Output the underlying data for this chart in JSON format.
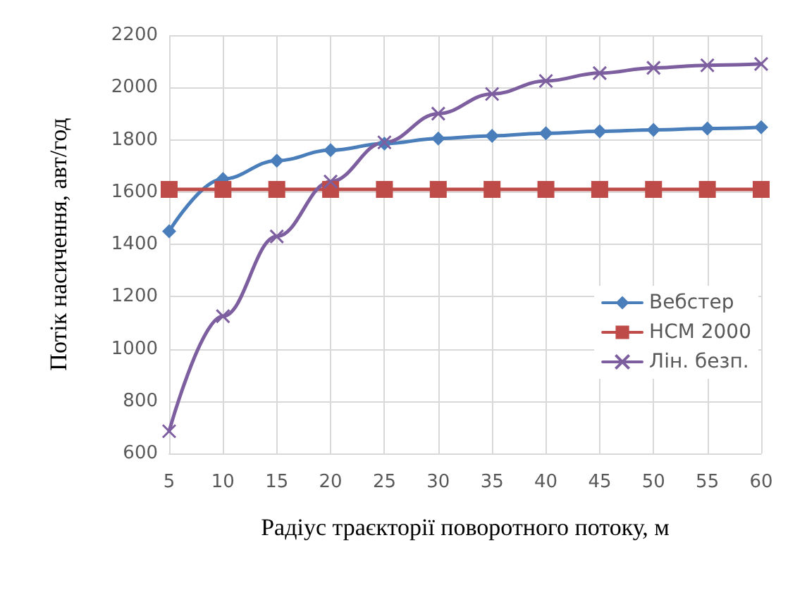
{
  "chart_data": {
    "type": "line",
    "xlabel": "Радіус траєкторії поворотного потоку, м",
    "ylabel": "Потік насичення, авт/год",
    "categories": [
      "5",
      "10",
      "15",
      "20",
      "25",
      "30",
      "35",
      "40",
      "45",
      "50",
      "55",
      "60"
    ],
    "series": [
      {
        "name": "Вебстер",
        "color": "#4a7ebb",
        "marker": "diamond",
        "values": [
          1450,
          1650,
          1720,
          1760,
          1785,
          1805,
          1815,
          1825,
          1832,
          1838,
          1843,
          1848
        ]
      },
      {
        "name": "HCM 2000",
        "color": "#be4b48",
        "marker": "square",
        "values": [
          1610,
          1610,
          1610,
          1610,
          1610,
          1610,
          1610,
          1610,
          1610,
          1610,
          1610,
          1610
        ]
      },
      {
        "name": "Лін. безп.",
        "color": "#7d5fa0",
        "marker": "cross",
        "values": [
          685,
          1125,
          1430,
          1640,
          1790,
          1900,
          1975,
          2025,
          2055,
          2075,
          2085,
          2090
        ]
      }
    ],
    "ylim": [
      600,
      2200
    ],
    "yticks": [
      600,
      800,
      1000,
      1200,
      1400,
      1600,
      1800,
      2000,
      2200
    ],
    "grid": true,
    "legend": "right"
  }
}
